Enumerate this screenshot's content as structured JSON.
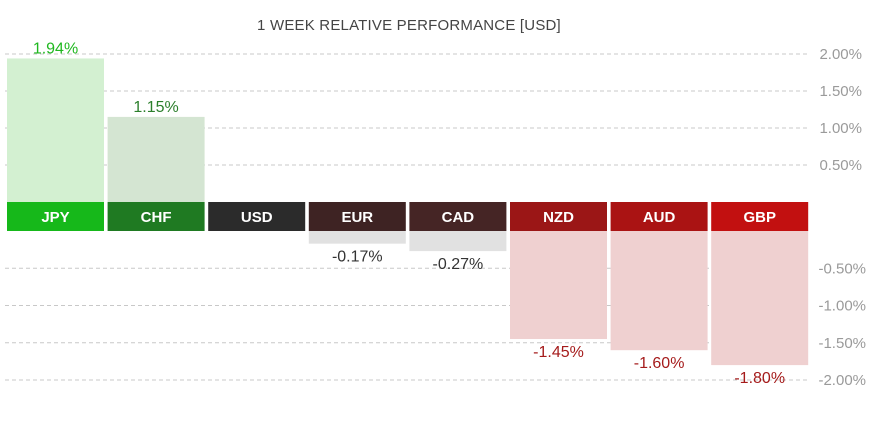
{
  "chart_data": {
    "type": "bar",
    "title": "1 WEEK RELATIVE PERFORMANCE  [USD]",
    "categories": [
      "JPY",
      "CHF",
      "USD",
      "EUR",
      "CAD",
      "NZD",
      "AUD",
      "GBP"
    ],
    "values": [
      1.94,
      1.15,
      0,
      -0.17,
      -0.27,
      -1.45,
      -1.6,
      -1.8
    ],
    "value_labels": [
      "1.94%",
      "1.15%",
      "",
      "-0.17%",
      "-0.27%",
      "-1.45%",
      "-1.60%",
      "-1.80%"
    ],
    "positive_ticks": [
      {
        "value": 2.0,
        "label": "2.00%"
      },
      {
        "value": 1.5,
        "label": "1.50%"
      },
      {
        "value": 1.0,
        "label": "1.00%"
      },
      {
        "value": 0.5,
        "label": "0.50%"
      }
    ],
    "negative_ticks": [
      {
        "value": -0.5,
        "label": "-0.50%"
      },
      {
        "value": -1.0,
        "label": "-1.00%"
      },
      {
        "value": -1.5,
        "label": "-1.50%"
      },
      {
        "value": -2.0,
        "label": "-2.00%"
      }
    ],
    "ylim": [
      -2.0,
      2.0
    ],
    "header_colors": [
      "#16b81a",
      "#1f7a22",
      "#2b2b2b",
      "#3e2323",
      "#452525",
      "#9b1616",
      "#aa1313",
      "#c21010"
    ],
    "bar_colors": [
      "#d3f0d1",
      "#d4e5d2",
      "#ffffff",
      "#e1e1e1",
      "#e1e1e1",
      "#efd0d0",
      "#efd0d0",
      "#efd0d0"
    ],
    "label_colors": [
      "#1fb81f",
      "#2c7f2c",
      "#333333",
      "#333333",
      "#333333",
      "#a51b1b",
      "#a51b1b",
      "#a51b1b"
    ],
    "xlabel": "",
    "ylabel": ""
  }
}
